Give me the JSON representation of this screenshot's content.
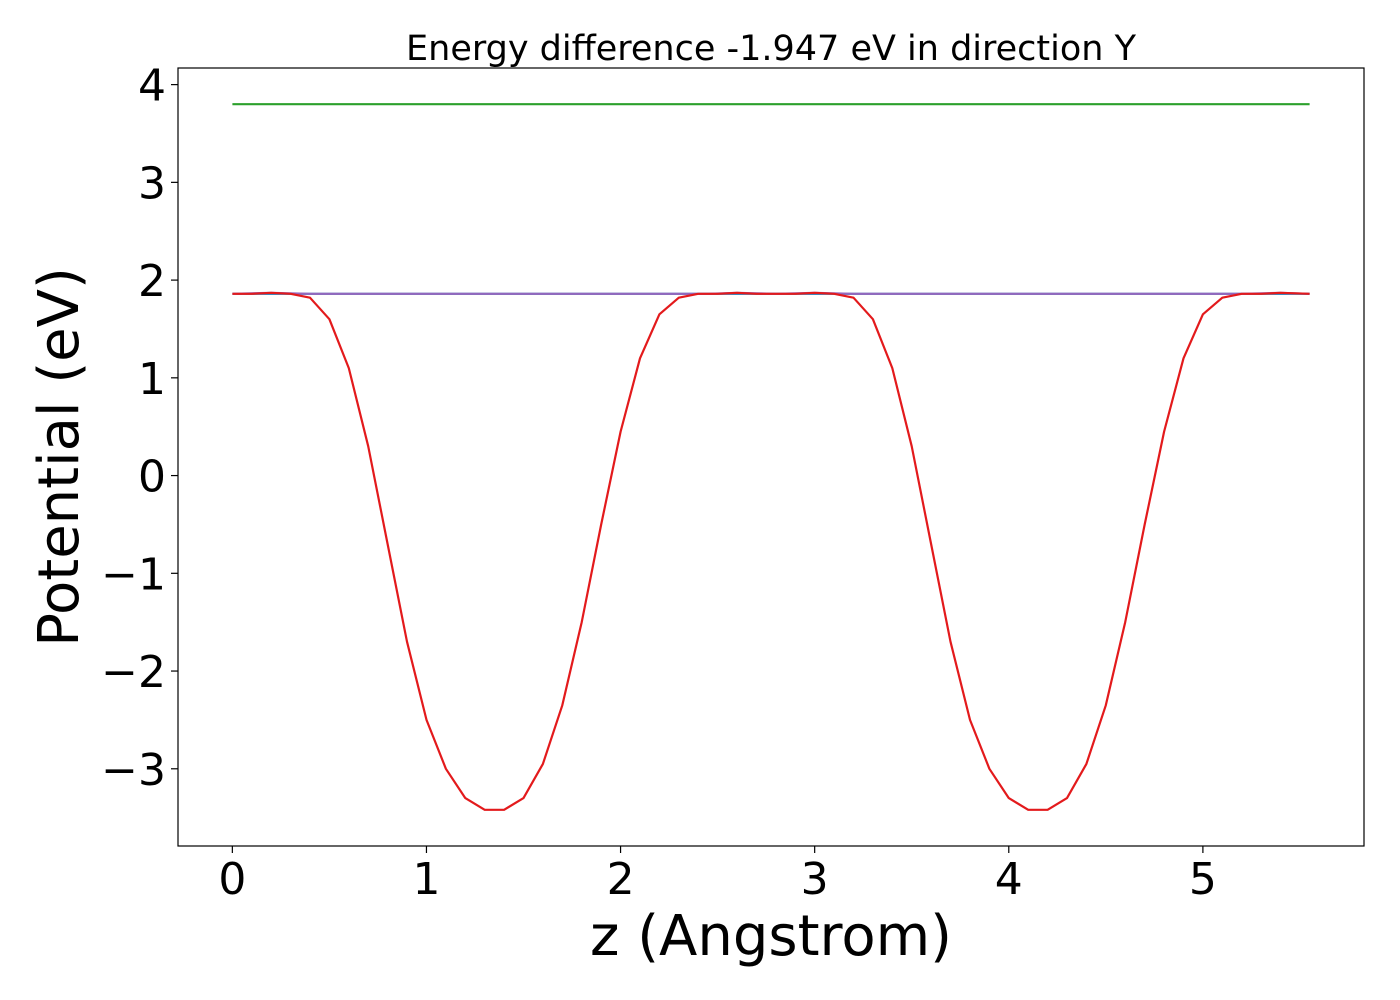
{
  "chart_data": {
    "type": "line",
    "title": "Energy difference -1.947 eV in direction Y",
    "xlabel": "z (Angstrom)",
    "ylabel": "Potential (eV)",
    "xlim": [
      -0.28,
      5.83
    ],
    "ylim": [
      -3.79,
      4.17
    ],
    "xticks": [
      0,
      1,
      2,
      3,
      4,
      5
    ],
    "xtick_labels": [
      "0",
      "1",
      "2",
      "3",
      "4",
      "5"
    ],
    "yticks": [
      -3,
      -2,
      -1,
      0,
      1,
      2,
      3,
      4
    ],
    "ytick_labels": [
      "−3",
      "−2",
      "−1",
      "0",
      "1",
      "2",
      "3",
      "4"
    ],
    "grid": false,
    "series": [
      {
        "color": "#2ca02c",
        "x": [
          0,
          5.55
        ],
        "y": [
          3.8,
          3.8
        ]
      },
      {
        "color": "#1f77b4",
        "x": [
          0,
          5.55
        ],
        "y": [
          1.86,
          1.86
        ]
      },
      {
        "color": "#9467bd",
        "x": [
          0,
          0.2,
          0.4,
          2.45,
          2.6,
          2.8,
          3.0,
          3.2,
          5.2,
          5.4,
          5.55
        ],
        "y": [
          1.86,
          1.87,
          1.86,
          1.86,
          1.87,
          1.86,
          1.87,
          1.86,
          1.86,
          1.87,
          1.86
        ]
      },
      {
        "color": "#e31a1c",
        "x": [
          0.0,
          0.1,
          0.2,
          0.3,
          0.4,
          0.5,
          0.6,
          0.7,
          0.8,
          0.9,
          1.0,
          1.1,
          1.2,
          1.3,
          1.4,
          1.5,
          1.6,
          1.7,
          1.8,
          1.9,
          2.0,
          2.1,
          2.2,
          2.3,
          2.4,
          2.5,
          2.6,
          2.7,
          2.8,
          2.9,
          3.0,
          3.1,
          3.2,
          3.3,
          3.4,
          3.5,
          3.6,
          3.7,
          3.8,
          3.9,
          4.0,
          4.1,
          4.2,
          4.3,
          4.4,
          4.5,
          4.6,
          4.7,
          4.8,
          4.9,
          5.0,
          5.1,
          5.2,
          5.3,
          5.4,
          5.55
        ],
        "y": [
          1.86,
          1.86,
          1.87,
          1.86,
          1.82,
          1.6,
          1.1,
          0.3,
          -0.7,
          -1.7,
          -2.5,
          -3.0,
          -3.3,
          -3.42,
          -3.42,
          -3.3,
          -2.95,
          -2.35,
          -1.5,
          -0.5,
          0.45,
          1.2,
          1.65,
          1.82,
          1.86,
          1.86,
          1.87,
          1.86,
          1.86,
          1.86,
          1.87,
          1.86,
          1.82,
          1.6,
          1.1,
          0.3,
          -0.7,
          -1.7,
          -2.5,
          -3.0,
          -3.3,
          -3.42,
          -3.42,
          -3.3,
          -2.95,
          -2.35,
          -1.5,
          -0.5,
          0.45,
          1.2,
          1.65,
          1.82,
          1.86,
          1.86,
          1.87,
          1.86
        ]
      }
    ]
  }
}
